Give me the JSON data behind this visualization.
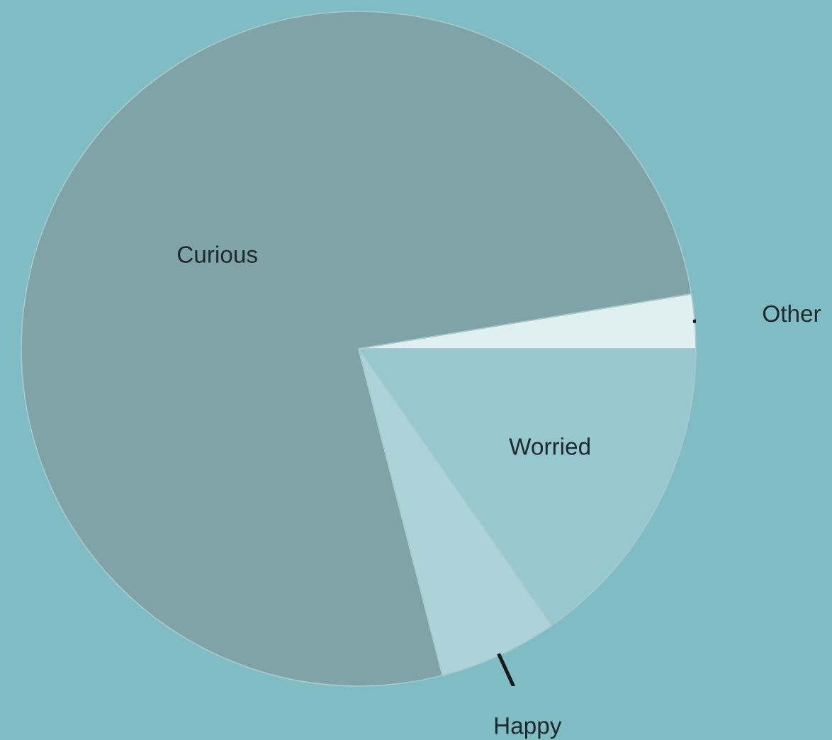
{
  "chart_data": {
    "type": "pie",
    "categories": [
      "Other",
      "Curious",
      "Happy",
      "Worried"
    ],
    "values": [
      2.6,
      76.4,
      5.7,
      15.3
    ],
    "colors": [
      "#e0eff0",
      "#7fa3a6",
      "#acd3d8",
      "#98c8cf"
    ]
  }
}
